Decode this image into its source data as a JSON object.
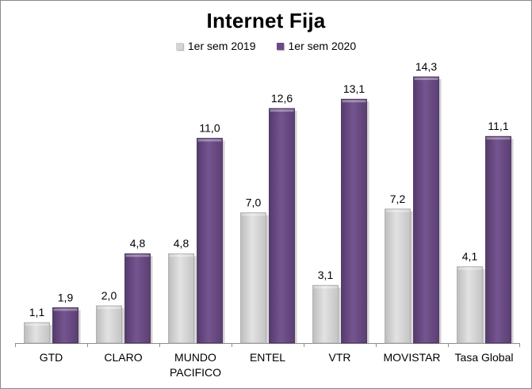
{
  "chart_data": {
    "type": "bar",
    "title": "Internet Fija",
    "categories": [
      [
        "GTD"
      ],
      [
        "CLARO"
      ],
      [
        "MUNDO",
        "PACIFICO"
      ],
      [
        "ENTEL"
      ],
      [
        "VTR"
      ],
      [
        "MOVISTAR"
      ],
      [
        "Tasa Global"
      ]
    ],
    "series": [
      {
        "name": "1er sem 2019",
        "color": "#d4d4d4",
        "values": [
          1.1,
          2.0,
          4.8,
          7.0,
          3.1,
          7.2,
          4.1
        ],
        "labels": [
          "1,1",
          "2,0",
          "4,8",
          "7,0",
          "3,1",
          "7,2",
          "4,1"
        ]
      },
      {
        "name": "1er sem 2020",
        "color": "#6b4a86",
        "values": [
          1.9,
          4.8,
          11.0,
          12.6,
          13.1,
          14.3,
          11.1
        ],
        "labels": [
          "1,9",
          "4,8",
          "11,0",
          "12,6",
          "13,1",
          "14,3",
          "11,1"
        ]
      }
    ],
    "xlabel": "",
    "ylabel": "",
    "ylim": [
      0,
      14.3
    ],
    "grid": false,
    "legend_position": "top"
  }
}
